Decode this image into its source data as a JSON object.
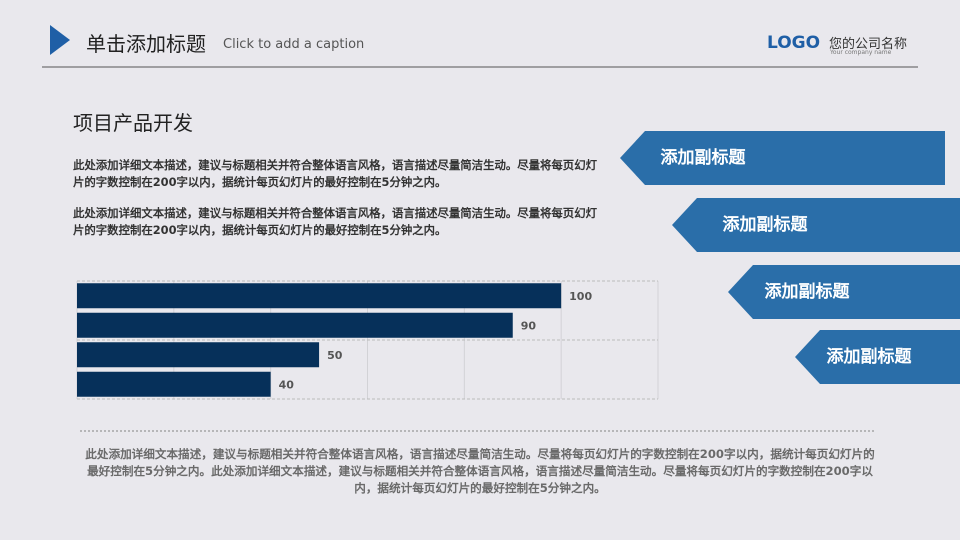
{
  "header": {
    "title": "单击添加标题",
    "caption": "Click to add a caption",
    "logo": "LOGO",
    "company": "您的公司名称",
    "company_en": "Your company name"
  },
  "section_title": "项目产品开发",
  "paragraphs": [
    "此处添加详细文本描述，建议与标题相关并符合整体语言风格，语言描述尽量简洁生动。尽量将每页幻灯片的字数控制在200字以内，据统计每页幻灯片的最好控制在5分钟之内。",
    "此处添加详细文本描述，建议与标题相关并符合整体语言风格，语言描述尽量简洁生动。尽量将每页幻灯片的字数控制在200字以内，据统计每页幻灯片的最好控制在5分钟之内。"
  ],
  "tabs": [
    "添加副标题",
    "添加副标题",
    "添加副标题",
    "添加副标题"
  ],
  "footer_text": "此处添加详细文本描述，建议与标题相关并符合整体语言风格，语言描述尽量简洁生动。尽量将每页幻灯片的字数控制在200字以内，据统计每页幻灯片的最好控制在5分钟之内。此处添加详细文本描述，建议与标题相关并符合整体语言风格，语言描述尽量简洁生动。尽量将每页幻灯片的字数控制在200字以内，据统计每页幻灯片的最好控制在5分钟之内。",
  "chart_data": {
    "type": "hbar",
    "categories": [
      null,
      null,
      null,
      null
    ],
    "values": [
      100,
      90,
      50,
      40
    ],
    "color": "#06305a",
    "xlim": [
      0,
      120
    ],
    "xticks": [
      0,
      20,
      40,
      60,
      80,
      100,
      120
    ],
    "grid": true
  }
}
